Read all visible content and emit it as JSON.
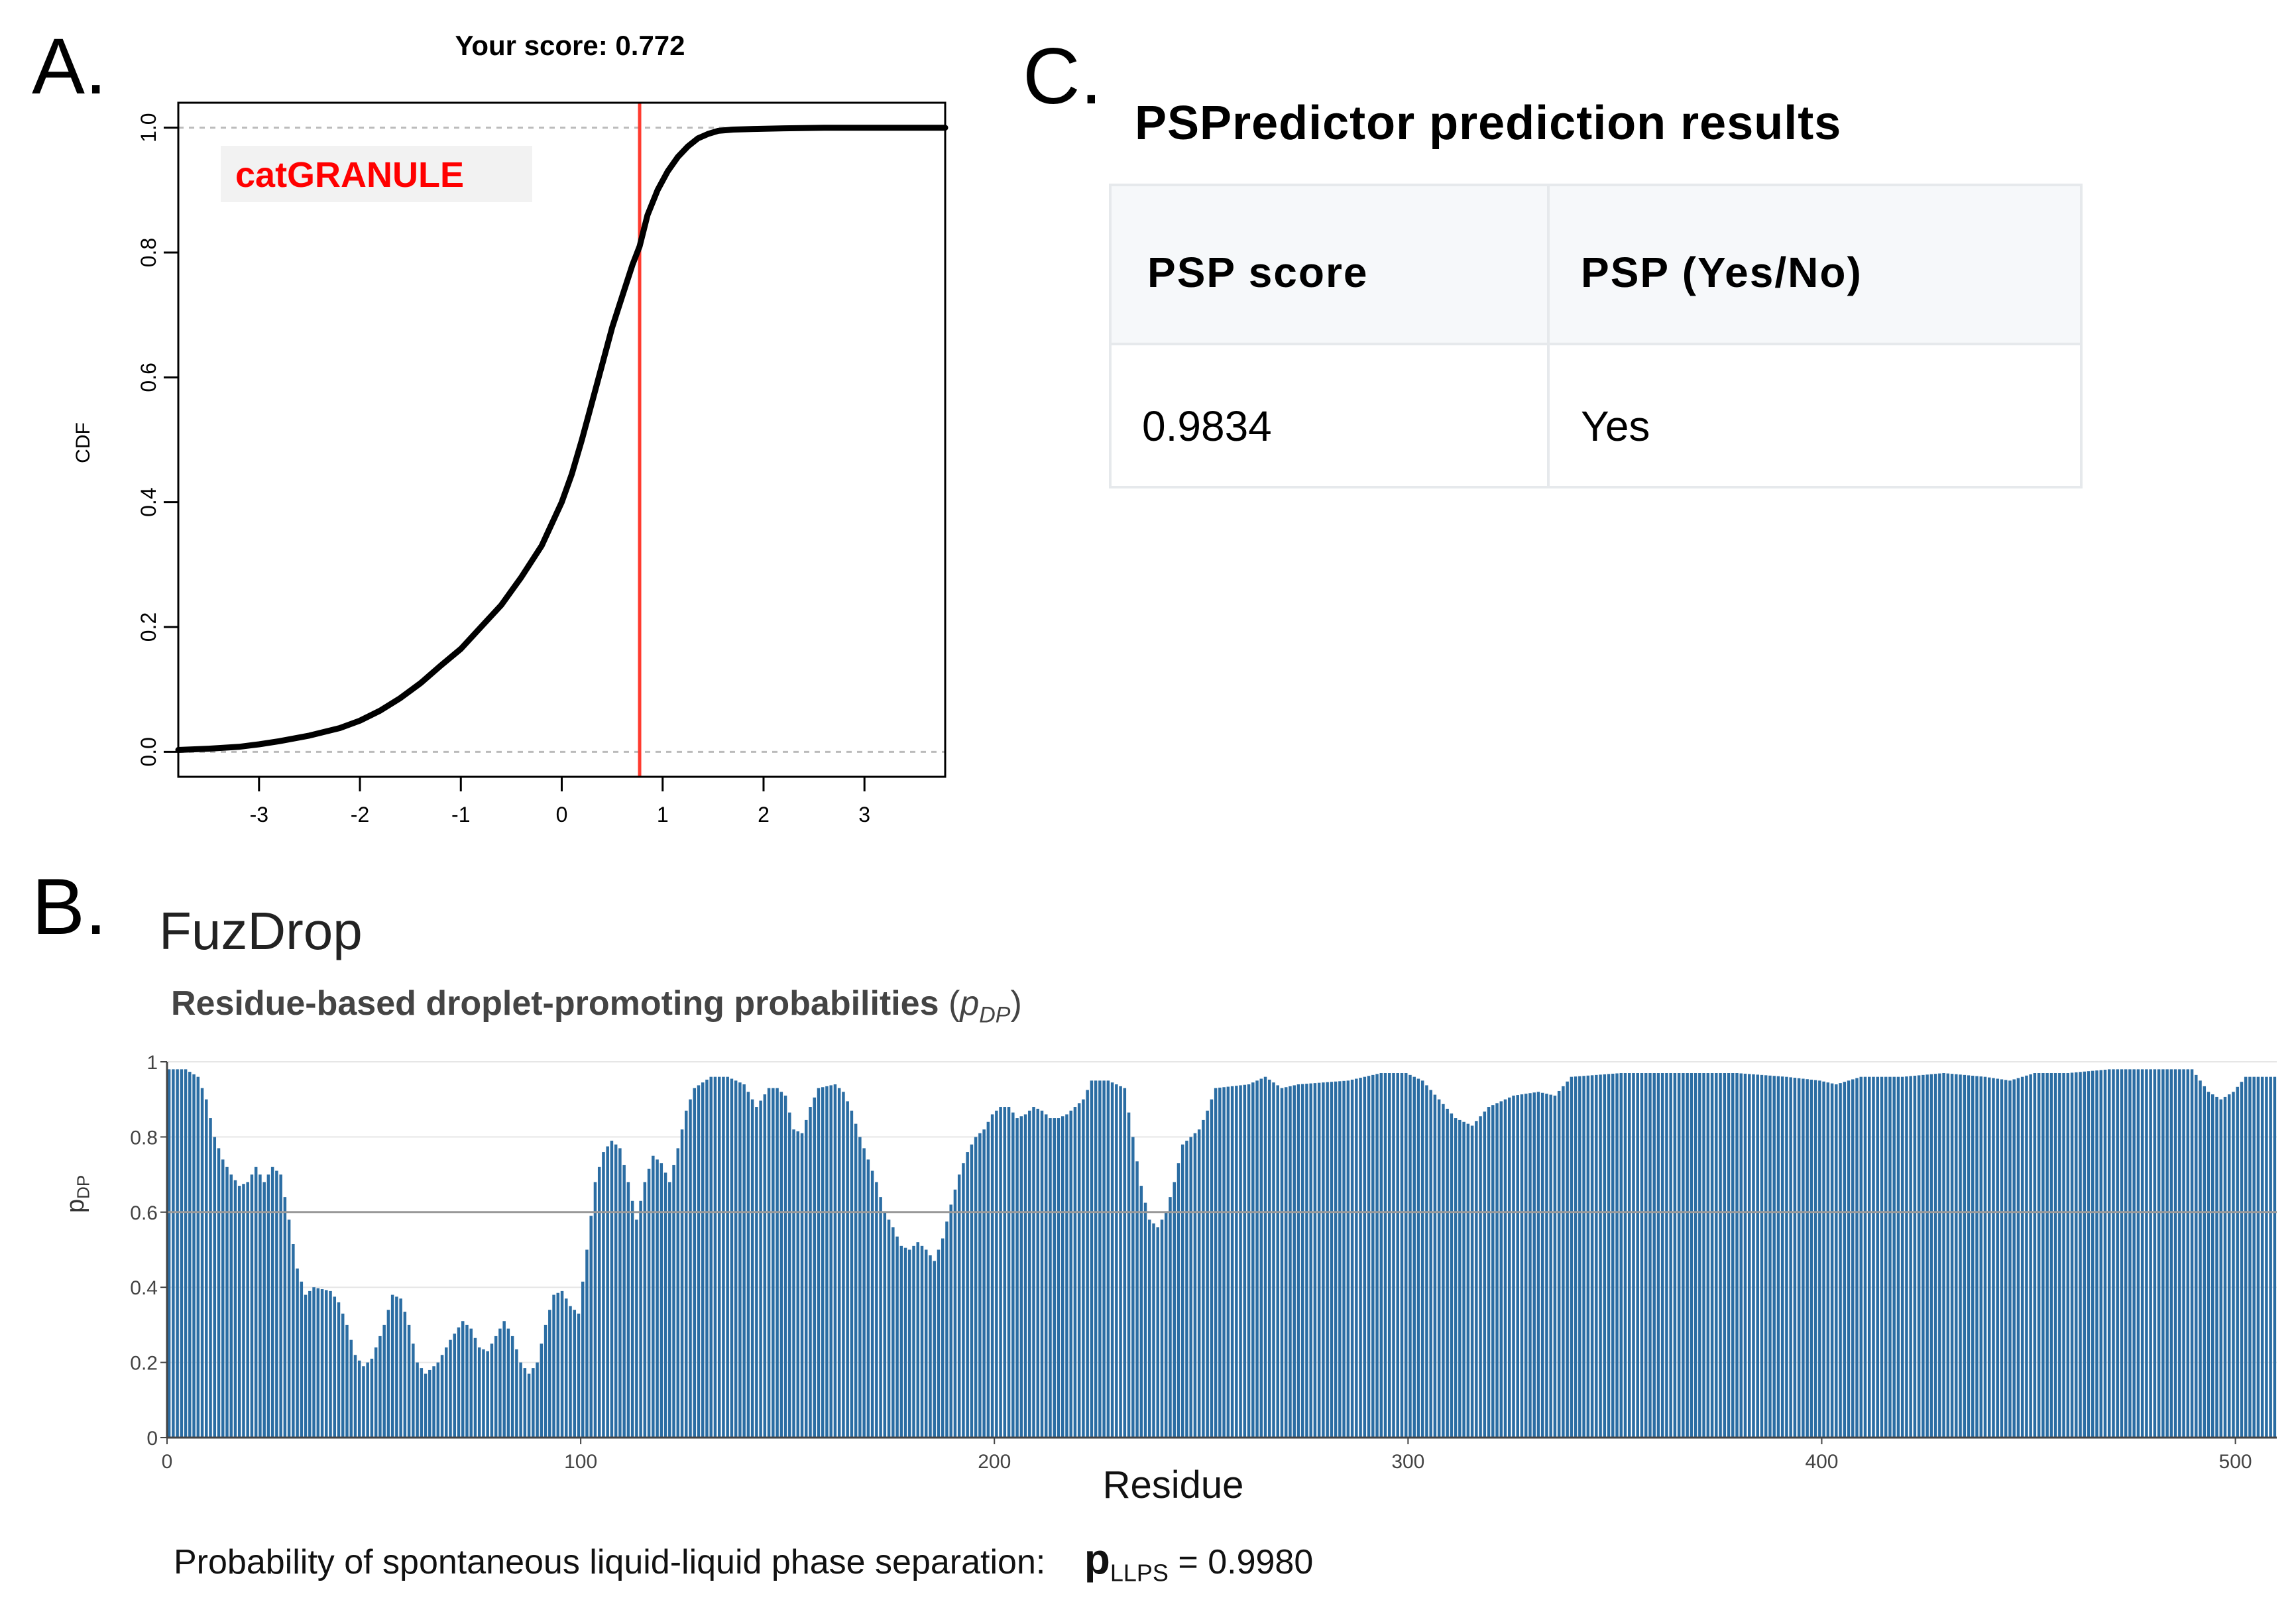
{
  "panel_letters": {
    "a": "A.",
    "b": "B.",
    "c": "C."
  },
  "panel_a": {
    "chart_data": {
      "type": "line",
      "title": "Your score: 0.772",
      "xlabel": "",
      "ylabel": "CDF",
      "xlim": [
        -3.8,
        3.8
      ],
      "ylim": [
        -0.04,
        1.04
      ],
      "xticks": [
        -3,
        -2,
        -1,
        0,
        1,
        2,
        3
      ],
      "xtick_labels": [
        "-3",
        "-2",
        "-1",
        "0",
        "1",
        "2",
        "3"
      ],
      "yticks": [
        0.0,
        0.2,
        0.4,
        0.6,
        0.8,
        1.0
      ],
      "ytick_labels": [
        "0.0",
        "0.2",
        "0.4",
        "0.6",
        "0.8",
        "1.0"
      ],
      "annotation": "catGRANULE",
      "score_line": 0.772,
      "reference_lines": [
        0.0,
        1.0
      ],
      "series": [
        {
          "name": "CDF",
          "x": [
            -3.8,
            -3.5,
            -3.2,
            -3.0,
            -2.8,
            -2.5,
            -2.2,
            -2.0,
            -1.8,
            -1.6,
            -1.4,
            -1.2,
            -1.0,
            -0.8,
            -0.6,
            -0.4,
            -0.2,
            0.0,
            0.1,
            0.2,
            0.3,
            0.4,
            0.5,
            0.6,
            0.7,
            0.772,
            0.85,
            0.95,
            1.05,
            1.15,
            1.25,
            1.35,
            1.45,
            1.55,
            1.7,
            1.9,
            2.2,
            2.6,
            3.0,
            3.8
          ],
          "y": [
            0.003,
            0.005,
            0.008,
            0.012,
            0.017,
            0.026,
            0.038,
            0.05,
            0.066,
            0.086,
            0.11,
            0.138,
            0.165,
            0.2,
            0.235,
            0.28,
            0.33,
            0.4,
            0.445,
            0.5,
            0.56,
            0.62,
            0.68,
            0.73,
            0.78,
            0.81,
            0.86,
            0.9,
            0.93,
            0.953,
            0.97,
            0.983,
            0.99,
            0.995,
            0.997,
            0.998,
            0.999,
            1.0,
            1.0,
            1.0
          ]
        }
      ]
    }
  },
  "panel_b": {
    "app_title": "FuzDrop",
    "chart_title_main": "Residue-based droplet-promoting probabilities",
    "chart_title_paren_open": "(",
    "chart_title_symbol": "p",
    "chart_title_symbol_sub": "DP",
    "chart_title_paren_close": ")",
    "ylabel_main": "p",
    "ylabel_sub": "DP",
    "footer_text": "Probability of spontaneous liquid-liquid phase separation:",
    "footer_symbol": "p",
    "footer_symbol_sub": "LLPS",
    "footer_value": "= 0.9980",
    "colors": {
      "bar": "#2b6da3",
      "threshold": "#999999",
      "grid": "#e6e6e6"
    },
    "chart_data": {
      "type": "bar",
      "xlabel": "Residue",
      "ylabel": "pDP",
      "xlim": [
        0,
        510
      ],
      "ylim": [
        0,
        1
      ],
      "xticks": [
        0,
        100,
        200,
        300,
        400,
        500
      ],
      "xtick_labels": [
        "0",
        "100",
        "200",
        "300",
        "400",
        "500"
      ],
      "yticks": [
        0,
        0.2,
        0.4,
        0.6,
        0.8,
        1
      ],
      "ytick_labels": [
        "0",
        "0.2",
        "0.4",
        "0.6",
        "0.8",
        "1"
      ],
      "threshold": 0.6,
      "n_residues": 510,
      "profile_anchors": [
        [
          1,
          0.98
        ],
        [
          5,
          0.98
        ],
        [
          8,
          0.96
        ],
        [
          10,
          0.9
        ],
        [
          12,
          0.8
        ],
        [
          14,
          0.74
        ],
        [
          16,
          0.7
        ],
        [
          18,
          0.67
        ],
        [
          20,
          0.68
        ],
        [
          22,
          0.72
        ],
        [
          24,
          0.68
        ],
        [
          26,
          0.72
        ],
        [
          28,
          0.7
        ],
        [
          30,
          0.58
        ],
        [
          32,
          0.45
        ],
        [
          34,
          0.38
        ],
        [
          36,
          0.4
        ],
        [
          40,
          0.39
        ],
        [
          42,
          0.36
        ],
        [
          44,
          0.3
        ],
        [
          46,
          0.22
        ],
        [
          48,
          0.19
        ],
        [
          50,
          0.21
        ],
        [
          53,
          0.3
        ],
        [
          55,
          0.38
        ],
        [
          57,
          0.37
        ],
        [
          59,
          0.3
        ],
        [
          61,
          0.2
        ],
        [
          63,
          0.17
        ],
        [
          66,
          0.2
        ],
        [
          69,
          0.26
        ],
        [
          72,
          0.31
        ],
        [
          74,
          0.29
        ],
        [
          76,
          0.24
        ],
        [
          78,
          0.23
        ],
        [
          80,
          0.27
        ],
        [
          82,
          0.31
        ],
        [
          84,
          0.27
        ],
        [
          86,
          0.2
        ],
        [
          88,
          0.17
        ],
        [
          90,
          0.2
        ],
        [
          92,
          0.3
        ],
        [
          94,
          0.38
        ],
        [
          96,
          0.39
        ],
        [
          98,
          0.35
        ],
        [
          100,
          0.33
        ],
        [
          102,
          0.5
        ],
        [
          104,
          0.68
        ],
        [
          106,
          0.76
        ],
        [
          108,
          0.79
        ],
        [
          110,
          0.77
        ],
        [
          112,
          0.68
        ],
        [
          114,
          0.58
        ],
        [
          116,
          0.68
        ],
        [
          118,
          0.75
        ],
        [
          120,
          0.73
        ],
        [
          122,
          0.68
        ],
        [
          124,
          0.77
        ],
        [
          126,
          0.87
        ],
        [
          128,
          0.93
        ],
        [
          132,
          0.96
        ],
        [
          136,
          0.96
        ],
        [
          140,
          0.94
        ],
        [
          143,
          0.88
        ],
        [
          146,
          0.93
        ],
        [
          148,
          0.93
        ],
        [
          150,
          0.91
        ],
        [
          152,
          0.82
        ],
        [
          154,
          0.81
        ],
        [
          156,
          0.88
        ],
        [
          158,
          0.93
        ],
        [
          162,
          0.94
        ],
        [
          164,
          0.92
        ],
        [
          166,
          0.87
        ],
        [
          168,
          0.8
        ],
        [
          170,
          0.74
        ],
        [
          172,
          0.68
        ],
        [
          174,
          0.6
        ],
        [
          176,
          0.56
        ],
        [
          178,
          0.51
        ],
        [
          180,
          0.5
        ],
        [
          182,
          0.52
        ],
        [
          184,
          0.5
        ],
        [
          186,
          0.47
        ],
        [
          188,
          0.53
        ],
        [
          190,
          0.62
        ],
        [
          192,
          0.7
        ],
        [
          194,
          0.76
        ],
        [
          196,
          0.8
        ],
        [
          198,
          0.82
        ],
        [
          200,
          0.86
        ],
        [
          202,
          0.88
        ],
        [
          204,
          0.88
        ],
        [
          206,
          0.85
        ],
        [
          208,
          0.86
        ],
        [
          210,
          0.88
        ],
        [
          212,
          0.87
        ],
        [
          214,
          0.85
        ],
        [
          216,
          0.85
        ],
        [
          218,
          0.86
        ],
        [
          220,
          0.88
        ],
        [
          222,
          0.9
        ],
        [
          224,
          0.95
        ],
        [
          228,
          0.95
        ],
        [
          232,
          0.93
        ],
        [
          234,
          0.8
        ],
        [
          236,
          0.67
        ],
        [
          238,
          0.58
        ],
        [
          240,
          0.56
        ],
        [
          242,
          0.6
        ],
        [
          244,
          0.68
        ],
        [
          246,
          0.78
        ],
        [
          250,
          0.82
        ],
        [
          252,
          0.87
        ],
        [
          254,
          0.93
        ],
        [
          262,
          0.94
        ],
        [
          266,
          0.96
        ],
        [
          270,
          0.93
        ],
        [
          274,
          0.94
        ],
        [
          286,
          0.95
        ],
        [
          294,
          0.97
        ],
        [
          300,
          0.97
        ],
        [
          304,
          0.95
        ],
        [
          308,
          0.9
        ],
        [
          312,
          0.85
        ],
        [
          316,
          0.83
        ],
        [
          320,
          0.88
        ],
        [
          326,
          0.91
        ],
        [
          332,
          0.92
        ],
        [
          336,
          0.91
        ],
        [
          340,
          0.96
        ],
        [
          352,
          0.97
        ],
        [
          380,
          0.97
        ],
        [
          392,
          0.96
        ],
        [
          400,
          0.95
        ],
        [
          404,
          0.94
        ],
        [
          410,
          0.96
        ],
        [
          420,
          0.96
        ],
        [
          430,
          0.97
        ],
        [
          440,
          0.96
        ],
        [
          446,
          0.95
        ],
        [
          452,
          0.97
        ],
        [
          460,
          0.97
        ],
        [
          470,
          0.98
        ],
        [
          484,
          0.98
        ],
        [
          490,
          0.98
        ],
        [
          492,
          0.95
        ],
        [
          494,
          0.92
        ],
        [
          497,
          0.9
        ],
        [
          500,
          0.92
        ],
        [
          503,
          0.96
        ],
        [
          510,
          0.96
        ]
      ]
    }
  },
  "panel_c": {
    "title": "PSPredictor prediction results",
    "headers": [
      "PSP score",
      "PSP (Yes/No)"
    ],
    "row": [
      "0.9834",
      "Yes"
    ]
  }
}
